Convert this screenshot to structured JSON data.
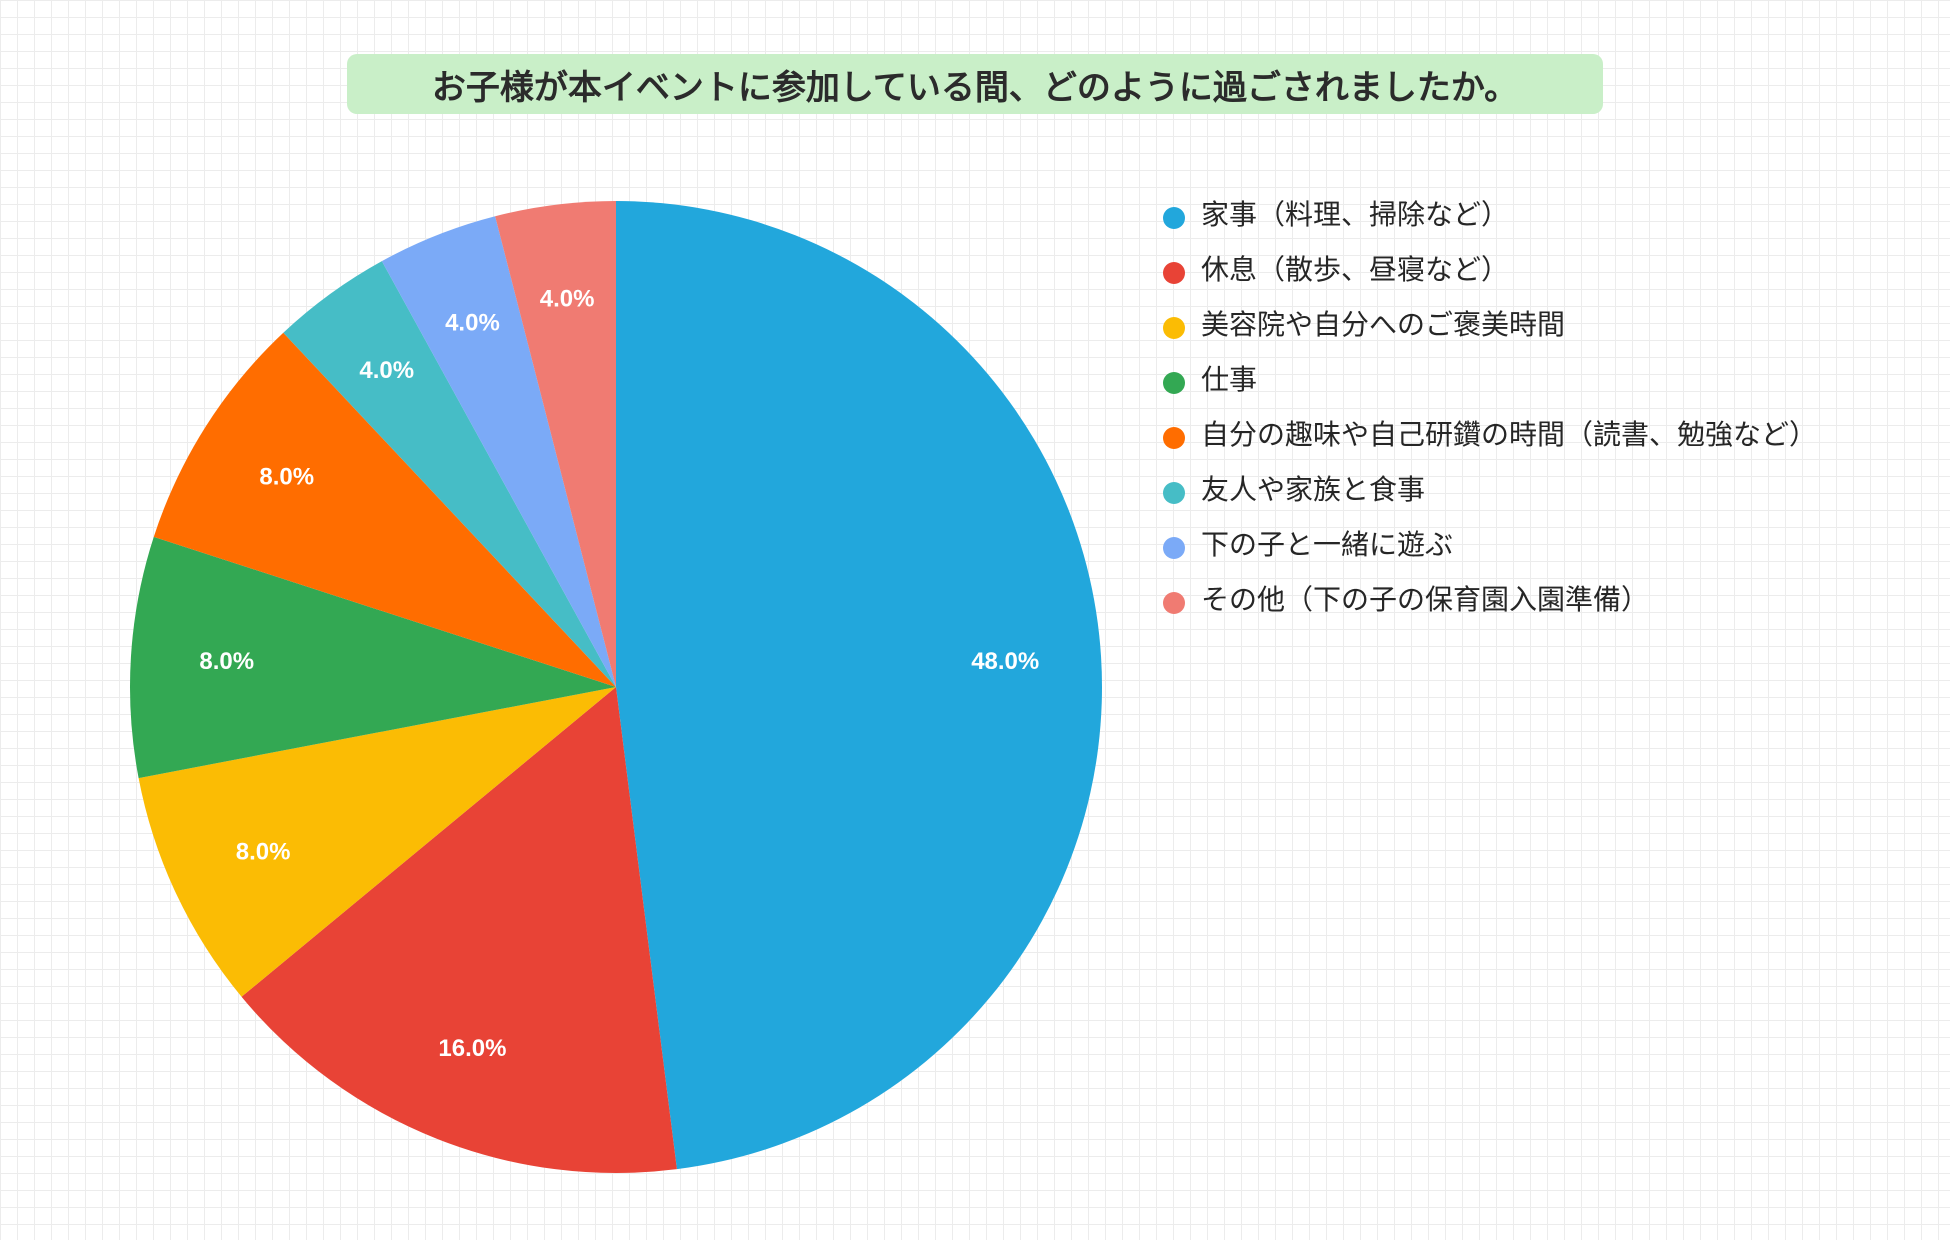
{
  "title": "お子様が本イベントに参加している間、どのように過ごされましたか。",
  "colors": {
    "title_background": "#c9efc8",
    "background": "#ffffff"
  },
  "chart_data": {
    "type": "pie",
    "title": "お子様が本イベントに参加している間、どのように過ごされましたか。",
    "start_angle": "12 o'clock, clockwise",
    "legend_position": "right",
    "series": [
      {
        "label": "家事（料理、掃除など）",
        "value": 48.0,
        "value_label": "48.0%",
        "color": "#22a7dc"
      },
      {
        "label": "休息（散歩、昼寝など）",
        "value": 16.0,
        "value_label": "16.0%",
        "color": "#e84336"
      },
      {
        "label": "美容院や自分へのご褒美時間",
        "value": 8.0,
        "value_label": "8.0%",
        "color": "#fbbc04"
      },
      {
        "label": "仕事",
        "value": 8.0,
        "value_label": "8.0%",
        "color": "#33a853"
      },
      {
        "label": "自分の趣味や自己研鑽の時間（読書、勉強など）",
        "value": 8.0,
        "value_label": "8.0%",
        "color": "#ff6d00"
      },
      {
        "label": "友人や家族と食事",
        "value": 4.0,
        "value_label": "4.0%",
        "color": "#46bdc6"
      },
      {
        "label": "下の子と一緒に遊ぶ",
        "value": 4.0,
        "value_label": "4.0%",
        "color": "#7baaf7"
      },
      {
        "label": "その他（下の子の保育園入園準備）",
        "value": 4.0,
        "value_label": "4.0%",
        "color": "#f07b72"
      }
    ]
  }
}
